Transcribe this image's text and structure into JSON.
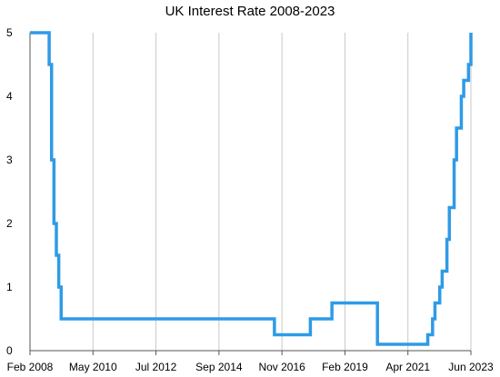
{
  "chart_data": {
    "type": "line",
    "title": "UK Interest Rate 2008-2023",
    "xlabel": "",
    "ylabel": "",
    "x_ticks": [
      "Feb 2008",
      "May 2010",
      "Jul 2012",
      "Sep 2014",
      "Nov 2016",
      "Feb 2019",
      "Apr 2021",
      "Jun 2023"
    ],
    "y_ticks": [
      0,
      1,
      2,
      3,
      4,
      5
    ],
    "ylim": [
      0,
      5
    ],
    "xlim": [
      "2008-02",
      "2023-06"
    ],
    "grid": "vertical",
    "legend": "none",
    "line_color": "#2e9be6",
    "series": [
      {
        "step": "post",
        "x": [
          "2008-02",
          "2008-04",
          "2008-10",
          "2008-11",
          "2008-12",
          "2009-01",
          "2009-02",
          "2009-03",
          "2016-08",
          "2017-11",
          "2018-08",
          "2020-03",
          "2021-12",
          "2022-02",
          "2022-03",
          "2022-05",
          "2022-06",
          "2022-08",
          "2022-09",
          "2022-11",
          "2022-12",
          "2023-02",
          "2023-03",
          "2023-05",
          "2023-06"
        ],
        "y": [
          5.0,
          5.0,
          4.5,
          3.0,
          2.0,
          1.5,
          1.0,
          0.5,
          0.25,
          0.5,
          0.75,
          0.1,
          0.25,
          0.5,
          0.75,
          1.0,
          1.25,
          1.75,
          2.25,
          3.0,
          3.5,
          4.0,
          4.25,
          4.5,
          5.0
        ]
      }
    ]
  }
}
